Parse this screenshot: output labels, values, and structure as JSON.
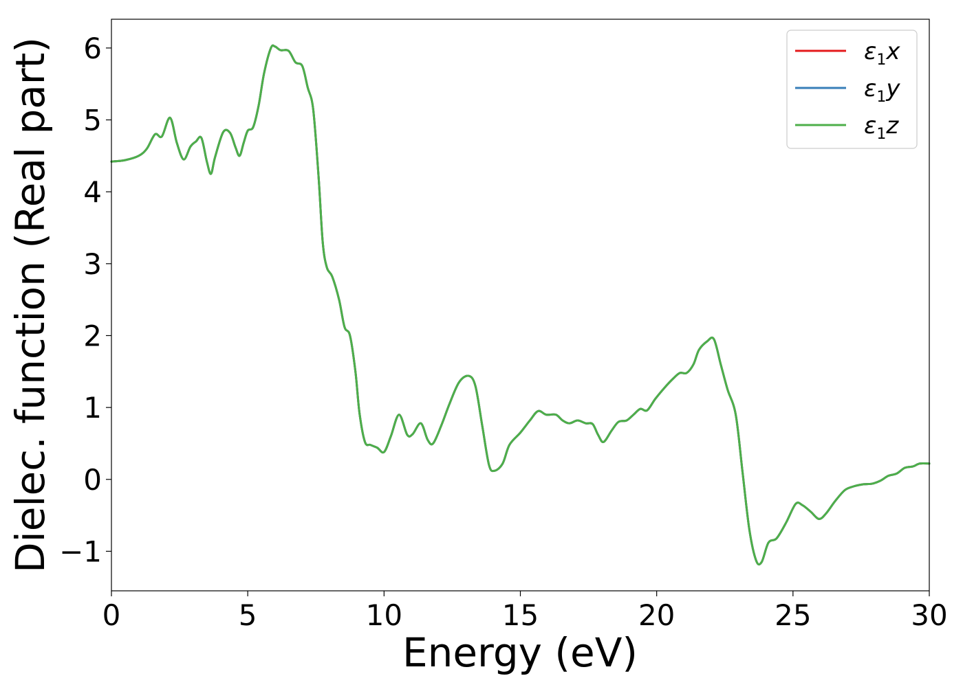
{
  "chart_data": {
    "type": "line",
    "title": "",
    "xlabel": "Energy (eV)",
    "ylabel": "Dielec. function (Real part)",
    "xlim": [
      0,
      30
    ],
    "ylim": [
      -1.55,
      6.4
    ],
    "xticks": [
      0,
      5,
      10,
      15,
      20,
      25,
      30
    ],
    "yticks": [
      -1,
      0,
      1,
      2,
      3,
      4,
      5,
      6
    ],
    "xtick_labels": [
      "0",
      "5",
      "10",
      "15",
      "20",
      "25",
      "30"
    ],
    "ytick_labels": [
      "−1",
      "0",
      "1",
      "2",
      "3",
      "4",
      "5",
      "6"
    ],
    "grid": false,
    "legend_position": "top-right",
    "x": [
      0,
      0.5,
      1.0,
      1.3,
      1.6,
      1.85,
      2.15,
      2.4,
      2.65,
      2.9,
      3.1,
      3.3,
      3.5,
      3.65,
      3.8,
      4.1,
      4.35,
      4.55,
      4.7,
      4.85,
      5.0,
      5.2,
      5.4,
      5.6,
      5.85,
      6.0,
      6.2,
      6.5,
      6.75,
      7.0,
      7.2,
      7.4,
      7.6,
      7.75,
      7.9,
      8.1,
      8.35,
      8.55,
      8.75,
      8.95,
      9.1,
      9.3,
      9.5,
      9.75,
      10.0,
      10.25,
      10.55,
      10.85,
      11.05,
      11.35,
      11.6,
      11.8,
      12.1,
      12.4,
      12.75,
      13.1,
      13.35,
      13.6,
      13.85,
      14.05,
      14.35,
      14.6,
      15.0,
      15.35,
      15.65,
      15.95,
      16.3,
      16.55,
      16.8,
      17.1,
      17.4,
      17.65,
      17.85,
      18.05,
      18.35,
      18.6,
      18.9,
      19.15,
      19.4,
      19.65,
      19.95,
      20.3,
      20.6,
      20.85,
      21.1,
      21.35,
      21.55,
      21.85,
      22.1,
      22.35,
      22.6,
      22.9,
      23.15,
      23.4,
      23.65,
      23.85,
      24.1,
      24.4,
      24.75,
      25.1,
      25.35,
      25.65,
      25.95,
      26.2,
      26.55,
      26.9,
      27.2,
      27.55,
      27.9,
      28.2,
      28.5,
      28.8,
      29.1,
      29.4,
      29.65,
      30.0
    ],
    "series": [
      {
        "name": "ε1x",
        "color": "#e41a1c",
        "y": [
          4.42,
          4.44,
          4.5,
          4.6,
          4.8,
          4.77,
          5.03,
          4.68,
          4.45,
          4.63,
          4.7,
          4.75,
          4.42,
          4.25,
          4.48,
          4.83,
          4.82,
          4.62,
          4.5,
          4.68,
          4.85,
          4.9,
          5.2,
          5.65,
          6.0,
          6.02,
          5.97,
          5.96,
          5.8,
          5.75,
          5.45,
          5.15,
          4.2,
          3.3,
          2.95,
          2.82,
          2.5,
          2.12,
          2.0,
          1.5,
          0.92,
          0.52,
          0.48,
          0.44,
          0.38,
          0.6,
          0.9,
          0.62,
          0.63,
          0.78,
          0.55,
          0.5,
          0.75,
          1.05,
          1.35,
          1.44,
          1.3,
          0.75,
          0.2,
          0.12,
          0.22,
          0.48,
          0.65,
          0.82,
          0.95,
          0.9,
          0.9,
          0.82,
          0.78,
          0.82,
          0.78,
          0.77,
          0.62,
          0.52,
          0.68,
          0.8,
          0.82,
          0.9,
          0.98,
          0.96,
          1.12,
          1.28,
          1.4,
          1.48,
          1.48,
          1.6,
          1.8,
          1.92,
          1.95,
          1.6,
          1.25,
          0.9,
          0.1,
          -0.7,
          -1.13,
          -1.15,
          -0.88,
          -0.82,
          -0.6,
          -0.34,
          -0.36,
          -0.45,
          -0.55,
          -0.48,
          -0.3,
          -0.15,
          -0.1,
          -0.07,
          -0.06,
          -0.02,
          0.05,
          0.08,
          0.16,
          0.18,
          0.22,
          0.22
        ]
      },
      {
        "name": "ε1y",
        "color": "#377eb8",
        "y": [
          4.42,
          4.44,
          4.5,
          4.6,
          4.8,
          4.77,
          5.03,
          4.68,
          4.45,
          4.63,
          4.7,
          4.75,
          4.42,
          4.25,
          4.48,
          4.83,
          4.82,
          4.62,
          4.5,
          4.68,
          4.85,
          4.9,
          5.2,
          5.65,
          6.0,
          6.02,
          5.97,
          5.96,
          5.8,
          5.75,
          5.45,
          5.15,
          4.2,
          3.3,
          2.95,
          2.82,
          2.5,
          2.12,
          2.0,
          1.5,
          0.92,
          0.52,
          0.48,
          0.44,
          0.38,
          0.6,
          0.9,
          0.62,
          0.63,
          0.78,
          0.55,
          0.5,
          0.75,
          1.05,
          1.35,
          1.44,
          1.3,
          0.75,
          0.2,
          0.12,
          0.22,
          0.48,
          0.65,
          0.82,
          0.95,
          0.9,
          0.9,
          0.82,
          0.78,
          0.82,
          0.78,
          0.77,
          0.62,
          0.52,
          0.68,
          0.8,
          0.82,
          0.9,
          0.98,
          0.96,
          1.12,
          1.28,
          1.4,
          1.48,
          1.48,
          1.6,
          1.8,
          1.92,
          1.95,
          1.6,
          1.25,
          0.9,
          0.1,
          -0.7,
          -1.13,
          -1.15,
          -0.88,
          -0.82,
          -0.6,
          -0.34,
          -0.36,
          -0.45,
          -0.55,
          -0.48,
          -0.3,
          -0.15,
          -0.1,
          -0.07,
          -0.06,
          -0.02,
          0.05,
          0.08,
          0.16,
          0.18,
          0.22,
          0.22
        ]
      },
      {
        "name": "ε1z",
        "color": "#4daf4a",
        "y": [
          4.42,
          4.44,
          4.5,
          4.6,
          4.8,
          4.77,
          5.03,
          4.68,
          4.45,
          4.63,
          4.7,
          4.75,
          4.42,
          4.25,
          4.48,
          4.83,
          4.82,
          4.62,
          4.5,
          4.68,
          4.85,
          4.9,
          5.2,
          5.65,
          6.0,
          6.02,
          5.97,
          5.96,
          5.8,
          5.75,
          5.45,
          5.15,
          4.2,
          3.3,
          2.95,
          2.82,
          2.5,
          2.12,
          2.0,
          1.5,
          0.92,
          0.52,
          0.48,
          0.44,
          0.38,
          0.6,
          0.9,
          0.62,
          0.63,
          0.78,
          0.55,
          0.5,
          0.75,
          1.05,
          1.35,
          1.44,
          1.3,
          0.75,
          0.2,
          0.12,
          0.22,
          0.48,
          0.65,
          0.82,
          0.95,
          0.9,
          0.9,
          0.82,
          0.78,
          0.82,
          0.78,
          0.77,
          0.62,
          0.52,
          0.68,
          0.8,
          0.82,
          0.9,
          0.98,
          0.96,
          1.12,
          1.28,
          1.4,
          1.48,
          1.48,
          1.6,
          1.8,
          1.92,
          1.95,
          1.6,
          1.25,
          0.9,
          0.1,
          -0.7,
          -1.13,
          -1.15,
          -0.88,
          -0.82,
          -0.6,
          -0.34,
          -0.36,
          -0.45,
          -0.55,
          -0.48,
          -0.3,
          -0.15,
          -0.1,
          -0.07,
          -0.06,
          -0.02,
          0.05,
          0.08,
          0.16,
          0.18,
          0.22,
          0.22
        ]
      }
    ],
    "legend": [
      {
        "symbol": "ε",
        "sub": "1",
        "var": "x",
        "color": "#e41a1c"
      },
      {
        "symbol": "ε",
        "sub": "1",
        "var": "y",
        "color": "#377eb8"
      },
      {
        "symbol": "ε",
        "sub": "1",
        "var": "z",
        "color": "#4daf4a"
      }
    ]
  }
}
